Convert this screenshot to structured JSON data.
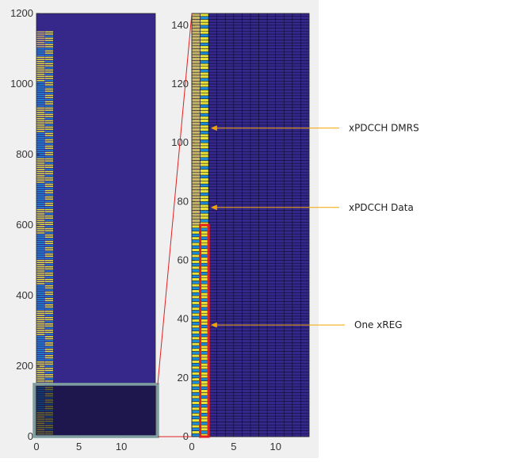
{
  "chart_data": [
    {
      "type": "heatmap",
      "panel": "full resource grid",
      "xlim": [
        0,
        14
      ],
      "ylim": [
        0,
        1200
      ],
      "xticks": [
        0,
        5,
        10
      ],
      "yticks": [
        0,
        200,
        400,
        600,
        800,
        1000,
        1200
      ],
      "occupied_symbols": [
        0,
        1
      ],
      "occupied_subcarriers": [
        0,
        1150
      ],
      "highlight_region": {
        "x": [
          0,
          14
        ],
        "y": [
          0,
          144
        ]
      },
      "colors": {
        "empty": "#35288a",
        "data": "#e6e23a",
        "dmrs": "#1d8fd9",
        "reserved": "#c8b66a"
      }
    },
    {
      "type": "heatmap",
      "panel": "zoomed view",
      "xlim": [
        0,
        14
      ],
      "ylim": [
        0,
        144
      ],
      "xticks": [
        0,
        5,
        10
      ],
      "yticks": [
        0,
        20,
        40,
        60,
        80,
        100,
        120,
        140
      ],
      "columns": [
        {
          "symbol": 0,
          "rows_0_71": "alternating yellow/blue",
          "rows_72_143": "olive/beige"
        },
        {
          "symbol": 1,
          "rows_0_143": "mostly yellow with blue DMRS every third row"
        }
      ],
      "annotations": [
        {
          "text": "xPDCCH DMRS",
          "target": [
            1.5,
            105
          ]
        },
        {
          "text": "xPDCCH Data",
          "target": [
            1.5,
            78
          ]
        },
        {
          "text": "One xREG",
          "target": [
            1.5,
            38
          ]
        }
      ],
      "highlight_box": {
        "x": [
          1,
          2
        ],
        "y": [
          0,
          72
        ]
      }
    }
  ],
  "colors": {
    "annotation_arrow": "#f5a300",
    "highlight_box": "#e02020",
    "zoom_lines": "#e02020",
    "zoom_frame": "#7f9ea0"
  }
}
